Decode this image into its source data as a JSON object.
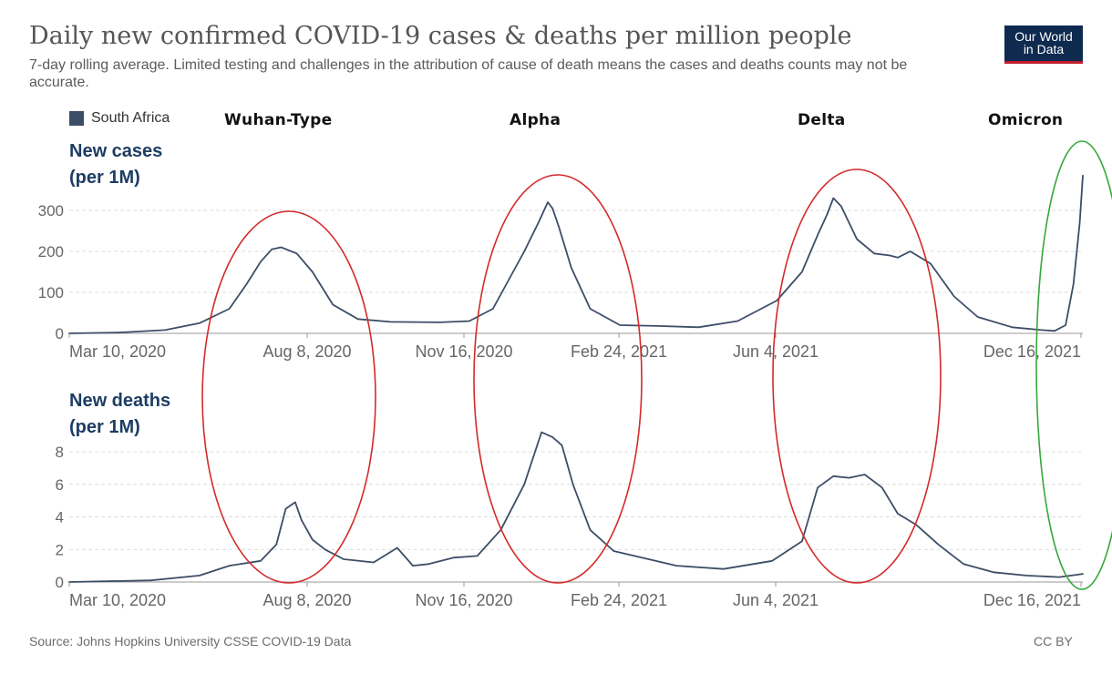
{
  "header": {
    "title": "Daily new confirmed COVID-19 cases & deaths per million people",
    "subtitle": "7-day rolling average. Limited testing and challenges in the attribution of cause of death means the cases and deaths counts may not be accurate.",
    "logo_line1": "Our World",
    "logo_line2": "in Data"
  },
  "legend": {
    "label": "South Africa",
    "color": "#3c4e66"
  },
  "annotations": {
    "variants": [
      "Wuhan-Type",
      "Alpha",
      "Delta",
      "Omicron"
    ],
    "red_color": "#d42a2a",
    "green_color": "#35a83a"
  },
  "footer": {
    "source": "Source: Johns Hopkins University CSSE COVID-19 Data",
    "license": "CC BY"
  },
  "chart_data": [
    {
      "type": "line",
      "title_line1": "New cases",
      "title_line2": "(per 1M)",
      "x_tick_labels": [
        "Mar 10, 2020",
        "Aug 8, 2020",
        "Nov 16, 2020",
        "Feb 24, 2021",
        "Jun 4, 2021",
        "Dec 16, 2021"
      ],
      "x_range": [
        "2020-03-10",
        "2021-12-16"
      ],
      "y_ticks": [
        0,
        100,
        200,
        300
      ],
      "ylim": [
        0,
        300
      ],
      "grid": true,
      "series": [
        {
          "name": "South Africa",
          "x": [
            "2020-03-10",
            "2020-04-10",
            "2020-05-10",
            "2020-06-01",
            "2020-06-20",
            "2020-07-01",
            "2020-07-10",
            "2020-07-17",
            "2020-07-23",
            "2020-08-02",
            "2020-08-12",
            "2020-08-25",
            "2020-09-10",
            "2020-10-01",
            "2020-11-01",
            "2020-11-20",
            "2020-12-05",
            "2020-12-15",
            "2020-12-25",
            "2021-01-03",
            "2021-01-09",
            "2021-01-12",
            "2021-01-16",
            "2021-01-24",
            "2021-02-05",
            "2021-02-24",
            "2021-03-20",
            "2021-04-15",
            "2021-05-10",
            "2021-06-04",
            "2021-06-20",
            "2021-06-30",
            "2021-07-06",
            "2021-07-10",
            "2021-07-15",
            "2021-07-25",
            "2021-08-05",
            "2021-08-15",
            "2021-08-20",
            "2021-08-28",
            "2021-09-10",
            "2021-09-25",
            "2021-10-10",
            "2021-11-01",
            "2021-11-20",
            "2021-11-28",
            "2021-12-05",
            "2021-12-10",
            "2021-12-14",
            "2021-12-16"
          ],
          "values": [
            0,
            2,
            8,
            25,
            60,
            120,
            175,
            205,
            210,
            195,
            150,
            70,
            35,
            28,
            27,
            30,
            60,
            130,
            200,
            270,
            320,
            305,
            260,
            160,
            60,
            20,
            18,
            15,
            30,
            80,
            150,
            240,
            290,
            330,
            310,
            230,
            195,
            190,
            185,
            200,
            170,
            90,
            40,
            15,
            8,
            6,
            20,
            120,
            270,
            385
          ]
        }
      ]
    },
    {
      "type": "line",
      "title_line1": "New deaths",
      "title_line2": "(per 1M)",
      "x_tick_labels": [
        "Mar 10, 2020",
        "Aug 8, 2020",
        "Nov 16, 2020",
        "Feb 24, 2021",
        "Jun 4, 2021",
        "Dec 16, 2021"
      ],
      "x_range": [
        "2020-03-10",
        "2021-12-16"
      ],
      "y_ticks": [
        0,
        2,
        4,
        6,
        8
      ],
      "ylim": [
        0,
        8
      ],
      "grid": true,
      "series": [
        {
          "name": "South Africa",
          "x": [
            "2020-03-10",
            "2020-05-01",
            "2020-06-01",
            "2020-06-20",
            "2020-07-10",
            "2020-07-20",
            "2020-07-26",
            "2020-08-01",
            "2020-08-05",
            "2020-08-12",
            "2020-08-20",
            "2020-09-01",
            "2020-09-20",
            "2020-10-05",
            "2020-10-15",
            "2020-10-25",
            "2020-11-10",
            "2020-11-25",
            "2020-12-10",
            "2020-12-25",
            "2021-01-05",
            "2021-01-12",
            "2021-01-18",
            "2021-01-25",
            "2021-02-05",
            "2021-02-20",
            "2021-03-10",
            "2021-04-01",
            "2021-05-01",
            "2021-06-01",
            "2021-06-20",
            "2021-06-30",
            "2021-07-10",
            "2021-07-20",
            "2021-07-30",
            "2021-08-10",
            "2021-08-20",
            "2021-09-01",
            "2021-09-15",
            "2021-10-01",
            "2021-10-20",
            "2021-11-10",
            "2021-12-01",
            "2021-12-16"
          ],
          "values": [
            0,
            0.1,
            0.4,
            1.0,
            1.3,
            2.3,
            4.5,
            4.9,
            3.8,
            2.6,
            2.0,
            1.4,
            1.2,
            2.1,
            1.0,
            1.1,
            1.5,
            1.6,
            3.2,
            6.0,
            9.2,
            8.9,
            8.4,
            6.0,
            3.2,
            1.9,
            1.5,
            1.0,
            0.8,
            1.3,
            2.5,
            5.8,
            6.5,
            6.4,
            6.6,
            5.8,
            4.2,
            3.5,
            2.3,
            1.1,
            0.6,
            0.4,
            0.3,
            0.5
          ]
        }
      ]
    }
  ]
}
